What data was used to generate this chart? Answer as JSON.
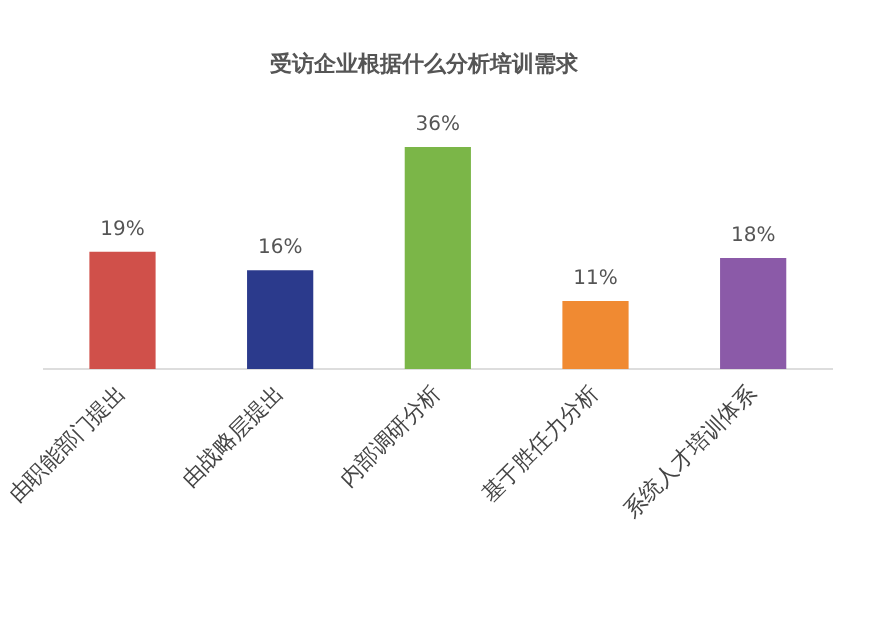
{
  "chart_data": {
    "type": "bar",
    "title": "受访企业根据什么分析培训需求",
    "categories": [
      "由职能部门提出",
      "由战略层提出",
      "内部调研分析",
      "基于胜任力分析",
      "系统人才培训体系"
    ],
    "values": [
      19,
      16,
      36,
      11,
      18
    ],
    "colors": [
      "#d0504a",
      "#2b3a8c",
      "#7bb648",
      "#f08a32",
      "#8b5aa8"
    ],
    "value_labels": [
      "19%",
      "16%",
      "36%",
      "11%",
      "18%"
    ],
    "grid": false,
    "legend": false
  }
}
